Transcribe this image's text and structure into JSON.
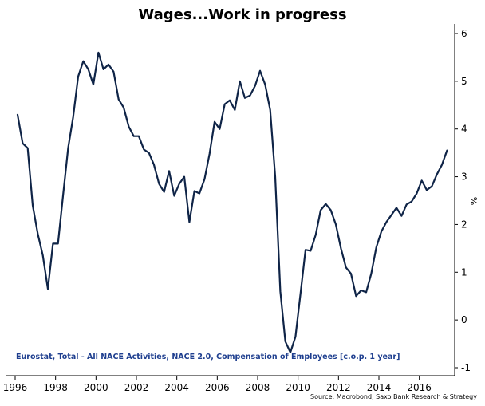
{
  "chart_data": {
    "type": "line",
    "title": "Wages...Work in progress",
    "ylabel": "%",
    "annotation": "Eurostat, Total - All NACE Activities, NACE 2.0, Compensation of Employees [c.o.p. 1 year]",
    "source": "Source: Macrobond, Saxo Bank Research & Strategy",
    "xlim": [
      1996,
      2017.75
    ],
    "ylim": [
      -1,
      6
    ],
    "x_ticks": [
      1996,
      1998,
      2000,
      2002,
      2004,
      2006,
      2008,
      2010,
      2012,
      2014,
      2016
    ],
    "y_ticks": [
      -1,
      0,
      1,
      2,
      3,
      4,
      5,
      6
    ],
    "grid": false,
    "y_axis_position": "right",
    "line_color": "#0f2447",
    "annotation_color": "#1f3f8f",
    "series": [
      {
        "x": [
          1996.12,
          1996.37,
          1996.62,
          1996.87,
          1997.12,
          1997.37,
          1997.62,
          1997.87,
          1998.12,
          1998.37,
          1998.62,
          1998.87,
          1999.12,
          1999.37,
          1999.62,
          1999.87,
          2000.12,
          2000.37,
          2000.62,
          2000.87,
          2001.12,
          2001.37,
          2001.62,
          2001.87,
          2002.12,
          2002.37,
          2002.62,
          2002.87,
          2003.12,
          2003.37,
          2003.62,
          2003.87,
          2004.12,
          2004.37,
          2004.62,
          2004.87,
          2005.12,
          2005.37,
          2005.62,
          2005.87,
          2006.12,
          2006.37,
          2006.62,
          2006.87,
          2007.12,
          2007.37,
          2007.62,
          2007.87,
          2008.12,
          2008.37,
          2008.62,
          2008.87,
          2009.12,
          2009.37,
          2009.62,
          2009.87,
          2010.12,
          2010.37,
          2010.62,
          2010.87,
          2011.12,
          2011.37,
          2011.62,
          2011.87,
          2012.12,
          2012.37,
          2012.62,
          2012.87,
          2013.12,
          2013.37,
          2013.62,
          2013.87,
          2014.12,
          2014.37,
          2014.62,
          2014.87,
          2015.12,
          2015.37,
          2015.62,
          2015.87,
          2016.12,
          2016.37,
          2016.62,
          2016.87,
          2017.12,
          2017.37
        ],
        "y": [
          4.3,
          3.7,
          3.6,
          2.4,
          1.8,
          1.35,
          0.65,
          1.6,
          1.6,
          2.6,
          3.6,
          4.25,
          5.1,
          5.42,
          5.25,
          4.93,
          5.6,
          5.25,
          5.35,
          5.2,
          4.62,
          4.45,
          4.05,
          3.85,
          3.85,
          3.57,
          3.5,
          3.25,
          2.85,
          2.68,
          3.12,
          2.6,
          2.85,
          3.0,
          2.05,
          2.7,
          2.65,
          2.95,
          3.48,
          4.15,
          4.0,
          4.52,
          4.6,
          4.4,
          5.0,
          4.65,
          4.7,
          4.9,
          5.22,
          4.93,
          4.4,
          3.0,
          0.6,
          -0.45,
          -0.68,
          -0.35,
          0.55,
          1.47,
          1.45,
          1.78,
          2.3,
          2.43,
          2.3,
          2.0,
          1.5,
          1.1,
          0.97,
          0.5,
          0.62,
          0.58,
          0.97,
          1.52,
          1.85,
          2.05,
          2.2,
          2.35,
          2.18,
          2.42,
          2.48,
          2.65,
          2.92,
          2.72,
          2.8,
          3.05,
          3.25,
          3.55
        ]
      }
    ]
  }
}
